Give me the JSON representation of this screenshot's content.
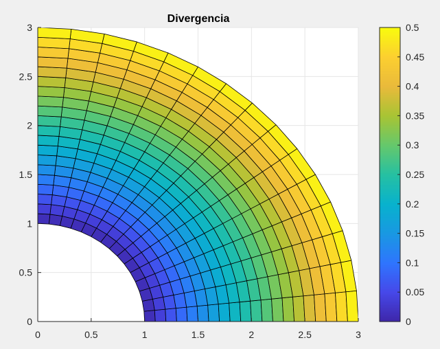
{
  "chart_data": {
    "type": "heatmap",
    "title": "Divergencia",
    "xlabel": "",
    "ylabel": "",
    "xlim": [
      0,
      3
    ],
    "ylim": [
      0,
      3
    ],
    "x_ticks": [
      "0",
      "0.5",
      "1",
      "1.5",
      "2",
      "2.5",
      "3"
    ],
    "y_ticks": [
      "0",
      "0.5",
      "1",
      "1.5",
      "2",
      "2.5",
      "3"
    ],
    "grid": true,
    "colormap": "parula",
    "mesh": {
      "shape": "quarter annulus",
      "r_min": 1,
      "r_max": 3,
      "theta_min_deg": 0,
      "theta_max_deg": 90,
      "radial_divisions": 20,
      "angular_divisions": 15
    },
    "field": {
      "value_at_r_min": 0,
      "value_at_r_max": 0.5,
      "depends_on": "radius"
    },
    "colorbar": {
      "limits": [
        0,
        0.5
      ],
      "ticks": [
        "0",
        "0.05",
        "0.1",
        "0.15",
        "0.2",
        "0.25",
        "0.3",
        "0.35",
        "0.4",
        "0.45",
        "0.5"
      ]
    }
  }
}
